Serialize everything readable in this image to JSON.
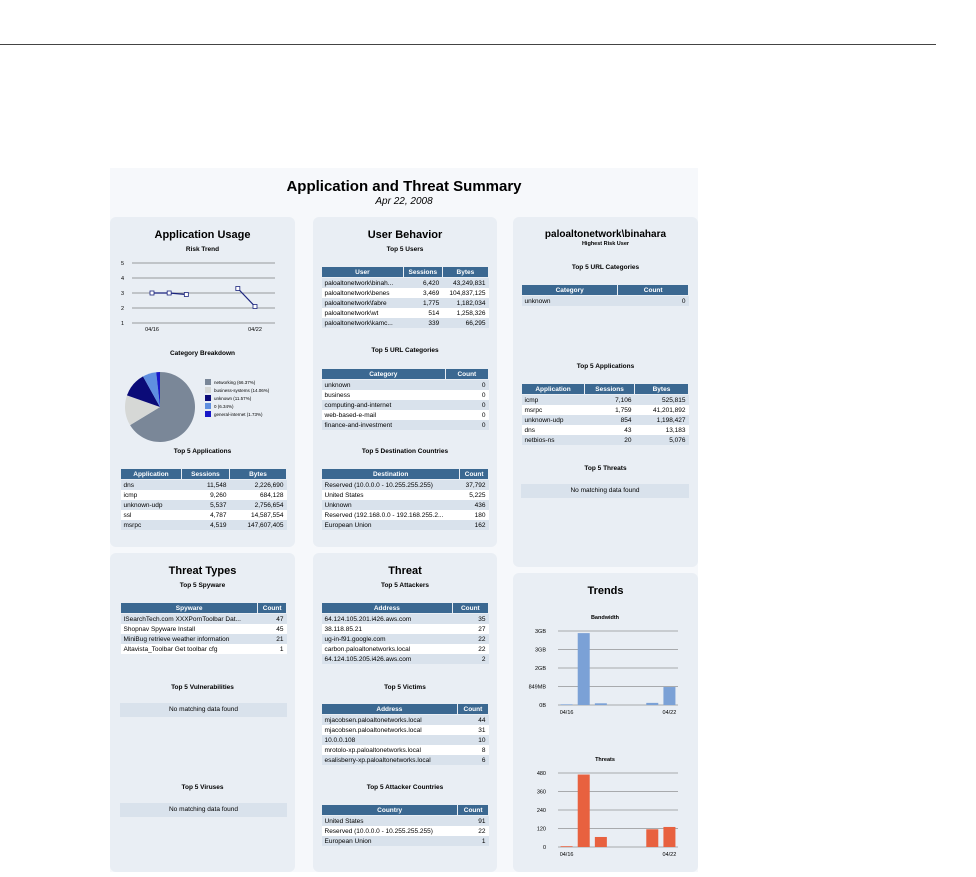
{
  "report": {
    "title": "Application and Threat Summary",
    "date": "Apr 22, 2008"
  },
  "app_usage": {
    "title": "Application Usage",
    "risk_trend_title": "Risk Trend",
    "category_title": "Category Breakdown",
    "top_apps_title": "Top 5 Applications",
    "legend": [
      {
        "label": "networking (66.37%)",
        "color": "#7a8798"
      },
      {
        "label": "business-systems (14.06%)",
        "color": "#d6d8d6"
      },
      {
        "label": "unknown (11.57%)",
        "color": "#0b0b78"
      },
      {
        "label": "0 (6.34%)",
        "color": "#5f8fe0"
      },
      {
        "label": "general-internet (1.73%)",
        "color": "#1818c8"
      }
    ],
    "apps": {
      "headers": [
        "Application",
        "Sessions",
        "Bytes"
      ],
      "rows": [
        [
          "dns",
          "11,548",
          "2,226,690"
        ],
        [
          "icmp",
          "9,260",
          "684,128"
        ],
        [
          "unknown-udp",
          "5,537",
          "2,756,654"
        ],
        [
          "ssl",
          "4,787",
          "14,587,554"
        ],
        [
          "msrpc",
          "4,519",
          "147,607,405"
        ]
      ]
    }
  },
  "user_behavior": {
    "title": "User Behavior",
    "top_users_title": "Top 5 Users",
    "users": {
      "headers": [
        "User",
        "Sessions",
        "Bytes"
      ],
      "rows": [
        [
          "paloaltonetwork\\binah...",
          "6,420",
          "43,249,831"
        ],
        [
          "paloaltonetwork\\benes",
          "3,469",
          "104,837,125"
        ],
        [
          "paloaltonetwork\\fabre",
          "1,775",
          "1,182,034"
        ],
        [
          "paloaltonetwork\\wt",
          "514",
          "1,258,326"
        ],
        [
          "paloaltonetwork\\kamc...",
          "339",
          "66,295"
        ]
      ]
    },
    "url_title": "Top 5 URL Categories",
    "url": {
      "headers": [
        "Category",
        "Count"
      ],
      "rows": [
        [
          "unknown",
          "0"
        ],
        [
          "business",
          "0"
        ],
        [
          "computing-and-internet",
          "0"
        ],
        [
          "web-based-e-mail",
          "0"
        ],
        [
          "finance-and-investment",
          "0"
        ]
      ]
    },
    "dest_title": "Top 5 Destination Countries",
    "dest": {
      "headers": [
        "Destination",
        "Count"
      ],
      "rows": [
        [
          "Reserved (10.0.0.0 - 10.255.255.255)",
          "37,792"
        ],
        [
          "United States",
          "5,225"
        ],
        [
          "Unknown",
          "436"
        ],
        [
          "Reserved (192.168.0.0 - 192.168.255.2...",
          "180"
        ],
        [
          "European Union",
          "162"
        ]
      ]
    }
  },
  "risk_user": {
    "name": "paloaltonetwork\\binahara",
    "subtitle": "Highest Risk User",
    "url_title": "Top 5 URL Categories",
    "url": {
      "headers": [
        "Category",
        "Count"
      ],
      "rows": [
        [
          "unknown",
          "0"
        ]
      ]
    },
    "apps_title": "Top 5 Applications",
    "apps": {
      "headers": [
        "Application",
        "Sessions",
        "Bytes"
      ],
      "rows": [
        [
          "icmp",
          "7,106",
          "525,815"
        ],
        [
          "msrpc",
          "1,759",
          "41,201,892"
        ],
        [
          "unknown-udp",
          "854",
          "1,198,427"
        ],
        [
          "dns",
          "43",
          "13,183"
        ],
        [
          "netbios-ns",
          "20",
          "5,076"
        ]
      ]
    },
    "threats_title": "Top 5 Threats",
    "no_data": "No matching data found"
  },
  "threat_types": {
    "title": "Threat Types",
    "spyware_title": "Top 5 Spyware",
    "spyware": {
      "headers": [
        "Spyware",
        "Count"
      ],
      "rows": [
        [
          "ISearchTech.com XXXPornToolbar Dat...",
          "47"
        ],
        [
          "Shopnav Spyware Install",
          "45"
        ],
        [
          "MiniBug retrieve weather information",
          "21"
        ],
        [
          "Altavista_Toolbar Get toolbar cfg",
          "1"
        ]
      ]
    },
    "vuln_title": "Top 5 Vulnerabilities",
    "virus_title": "Top 5 Viruses",
    "no_data": "No matching data found"
  },
  "threat": {
    "title": "Threat",
    "attackers_title": "Top 5 Attackers",
    "attackers": {
      "headers": [
        "Address",
        "Count"
      ],
      "rows": [
        [
          "64.124.105.201.i426.aws.com",
          "35"
        ],
        [
          "38.118.85.21",
          "27"
        ],
        [
          "ug-in-f91.google.com",
          "22"
        ],
        [
          "carbon.paloaltonetworks.local",
          "22"
        ],
        [
          "64.124.105.205.i426.aws.com",
          "2"
        ]
      ]
    },
    "victims_title": "Top 5 Victims",
    "victims": {
      "headers": [
        "Address",
        "Count"
      ],
      "rows": [
        [
          "mjacobsen.paloaltonetworks.local",
          "44"
        ],
        [
          "mjacobsen.paloaltonetworks.local",
          "31"
        ],
        [
          "10.0.0.108",
          "10"
        ],
        [
          "mrotolo-xp.paloaltonetworks.local",
          "8"
        ],
        [
          "esalisberry-xp.paloaltonetworks.local",
          "6"
        ]
      ]
    },
    "countries_title": "Top 5 Attacker Countries",
    "countries": {
      "headers": [
        "Country",
        "Count"
      ],
      "rows": [
        [
          "United States",
          "91"
        ],
        [
          "Reserved (10.0.0.0 - 10.255.255.255)",
          "22"
        ],
        [
          "European Union",
          "1"
        ]
      ]
    }
  },
  "trends": {
    "title": "Trends"
  },
  "chart_data": [
    {
      "type": "line",
      "title": "Risk Trend",
      "x_tick_labels": [
        "04/16",
        "04/22"
      ],
      "ylim": [
        1,
        5
      ],
      "y_ticks": [
        "1",
        "2",
        "3",
        "4",
        "5"
      ],
      "segments": [
        [
          3,
          3,
          2.9
        ],
        [
          3.3,
          2.1
        ]
      ],
      "grid": true
    },
    {
      "type": "pie",
      "title": "Category Breakdown",
      "labels": [
        "networking",
        "business-systems",
        "unknown",
        "0",
        "general-internet"
      ],
      "values": [
        66.37,
        14.06,
        11.57,
        6.34,
        1.73
      ],
      "legend": "right"
    },
    {
      "type": "bar",
      "title": "Bandwidth",
      "x_tick_labels": [
        "04/16",
        "04/22"
      ],
      "y_ticks": [
        "0B",
        "849MB",
        "2GB",
        "3GB",
        "3GB"
      ],
      "values": [
        0.03,
        3.4,
        0.08,
        0,
        0,
        0.1,
        0.85
      ],
      "unit": "GB",
      "ylim": [
        0,
        3.5
      ],
      "color": "#7ba1d6"
    },
    {
      "type": "bar",
      "title": "Threats",
      "x_tick_labels": [
        "04/16",
        "04/22"
      ],
      "y_ticks": [
        "0",
        "120",
        "240",
        "360",
        "480"
      ],
      "values": [
        5,
        470,
        65,
        0,
        0,
        115,
        130
      ],
      "ylim": [
        0,
        480
      ],
      "color": "#e8613f"
    }
  ]
}
